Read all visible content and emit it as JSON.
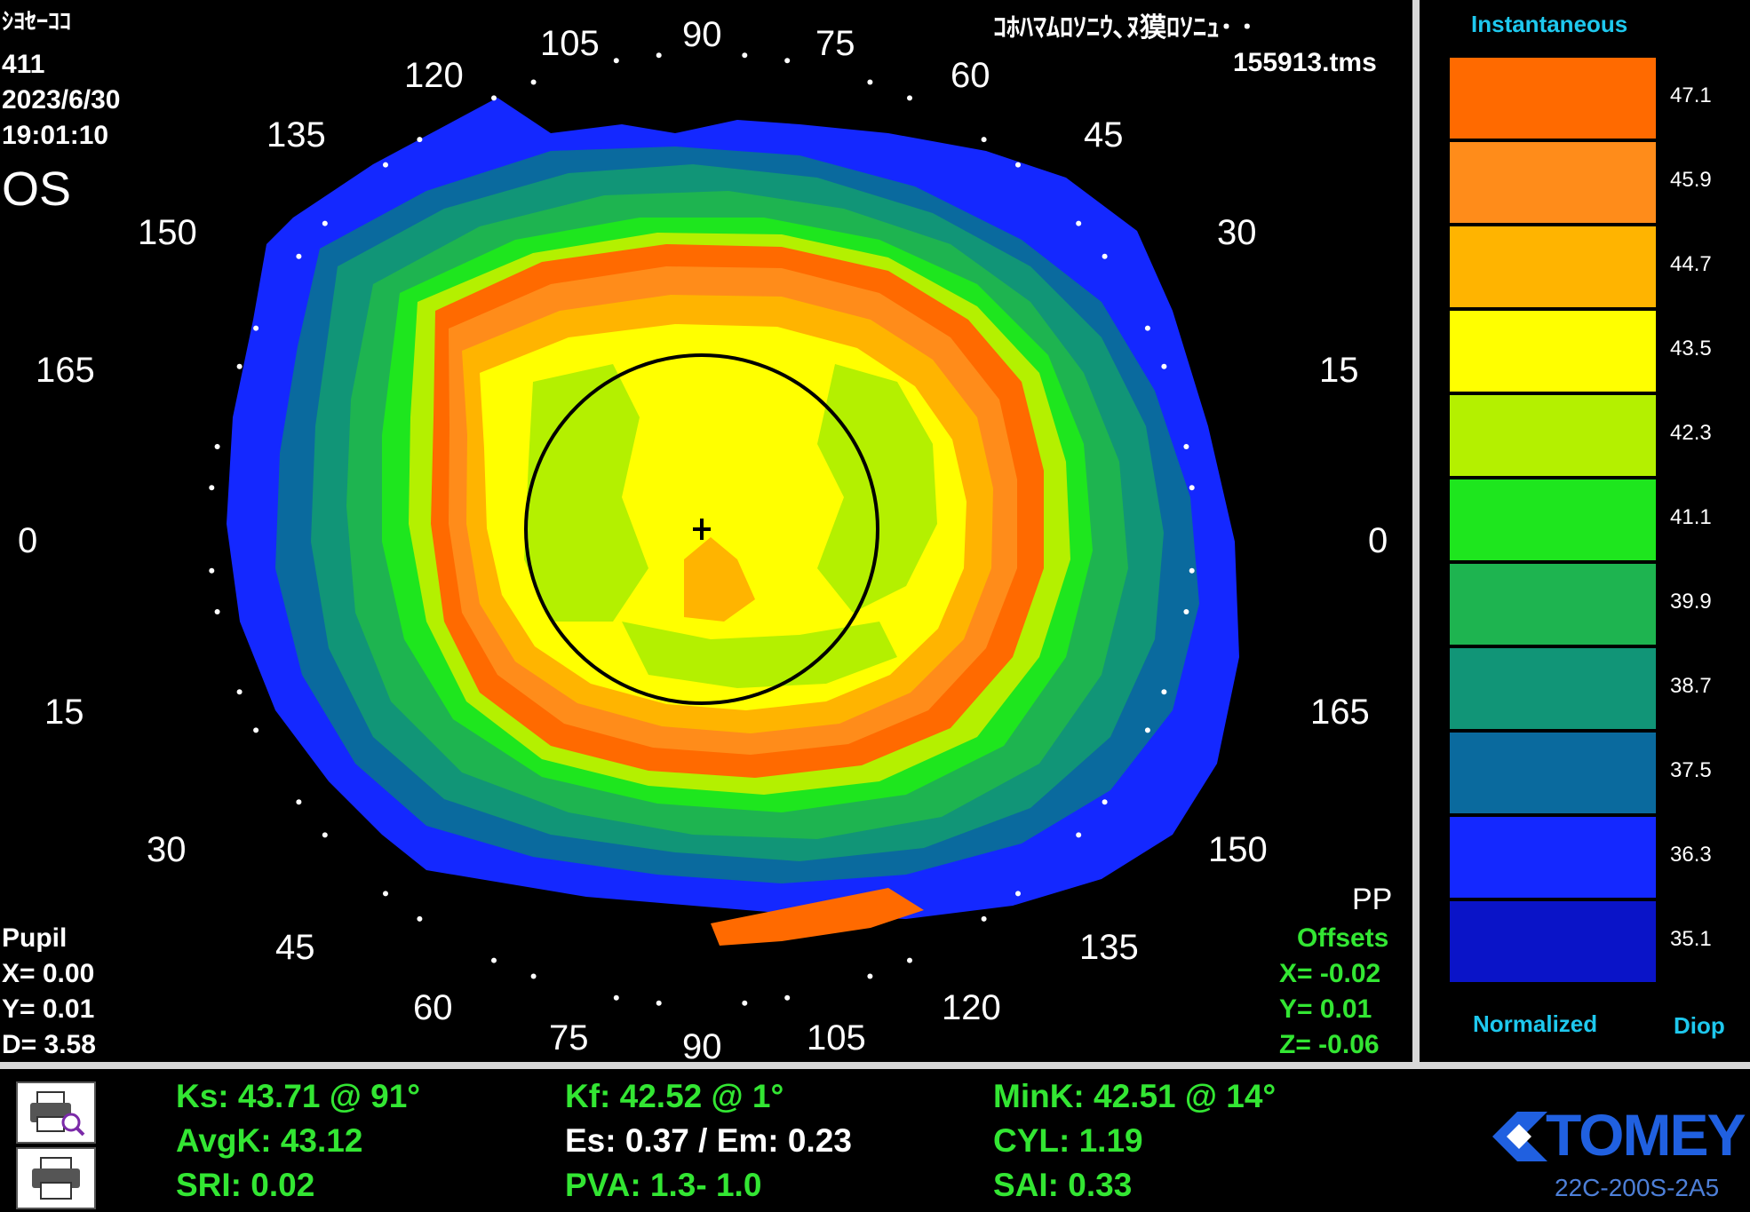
{
  "header": {
    "patient_name": "ｼﾖｾｰｺｺ",
    "patient_id": "411",
    "date": "2023/6/30",
    "time": "19:01:10",
    "eye": "OS",
    "title_jp": "ｺﾎﾊﾏﾑﾛｿﾆｳ､ﾇ獏ﾛｿﾆｭ･ ･",
    "filename": "155913.tms"
  },
  "pupil": {
    "title": "Pupil",
    "x": "X=  0.00",
    "y": "Y=  0.01",
    "d": "D=  3.58"
  },
  "offsets": {
    "pp": "PP",
    "title": "Offsets",
    "x": "X= -0.02",
    "y": "Y=  0.01",
    "z": "Z= -0.06"
  },
  "map": {
    "axis_labels_top": [
      "90",
      "105",
      "120",
      "135",
      "150",
      "165",
      "0",
      "15",
      "30",
      "45",
      "60",
      "75"
    ],
    "axis_labels_bottom": [
      "90",
      "105",
      "120",
      "135",
      "150",
      "165",
      "0",
      "15",
      "30",
      "45",
      "60",
      "75"
    ]
  },
  "scale": {
    "title": "Instantaneous",
    "footer_left": "Normalized",
    "footer_right": "Diop",
    "steps": [
      {
        "value": "47.1",
        "color": "#ff6a00"
      },
      {
        "value": "45.9",
        "color": "#ff8c1a"
      },
      {
        "value": "44.7",
        "color": "#ffb400"
      },
      {
        "value": "43.5",
        "color": "#ffff00"
      },
      {
        "value": "42.3",
        "color": "#b4f000"
      },
      {
        "value": "41.1",
        "color": "#1ee61e"
      },
      {
        "value": "39.9",
        "color": "#1eb450"
      },
      {
        "value": "38.7",
        "color": "#119577"
      },
      {
        "value": "37.5",
        "color": "#0a6a9e"
      },
      {
        "value": "36.3",
        "color": "#1428ff"
      },
      {
        "value": "35.1",
        "color": "#0a14c8"
      }
    ]
  },
  "metrics": {
    "ks": "Ks: 43.71 @ 91°",
    "avgk": "AvgK: 43.12",
    "sri": "SRI: 0.02",
    "kf": "Kf: 42.52 @  1°",
    "es_em": "Es: 0.37 / Em: 0.23",
    "pva": "PVA:   1.3-  1.0",
    "mink": "MinK: 42.51 @ 14°",
    "cyl": "CYL:  1.19",
    "sai": "SAI: 0.33"
  },
  "brand": {
    "name": "TOMEY",
    "model": "22C-200S-2A5",
    "brand_color": "#2060e0"
  }
}
